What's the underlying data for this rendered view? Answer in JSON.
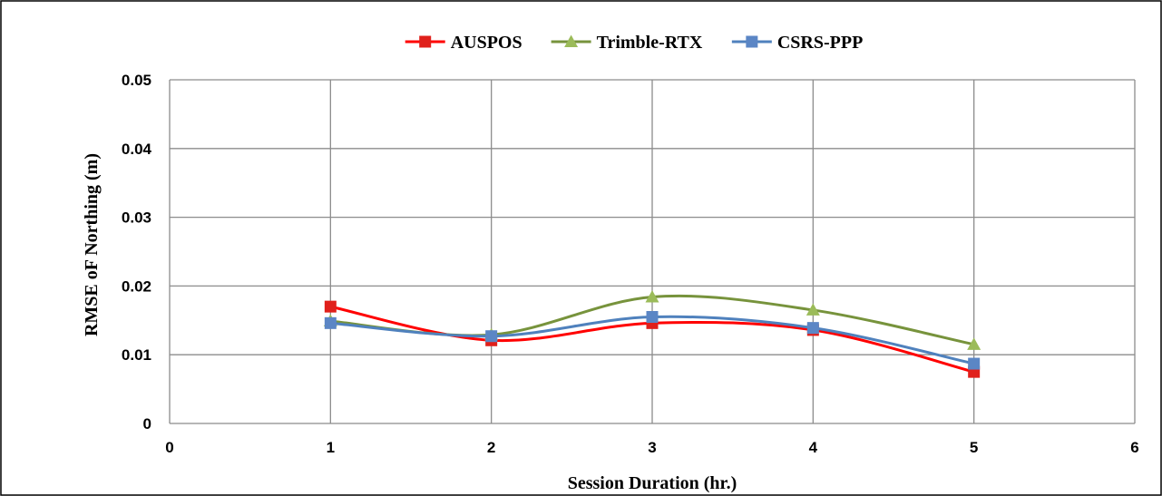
{
  "chart_data": {
    "type": "line",
    "xlabel": "Session Duration (hr.)",
    "ylabel": "RMSE oF  Northing (m)",
    "xlim": [
      0,
      6
    ],
    "ylim": [
      0,
      0.05
    ],
    "x_ticks": [
      "0",
      "1",
      "2",
      "3",
      "4",
      "5",
      "6"
    ],
    "y_ticks": [
      "0",
      "0.01",
      "0.02",
      "0.03",
      "0.04",
      "0.05"
    ],
    "grid": true,
    "legend_position": "top",
    "x": [
      1,
      2,
      3,
      4,
      5
    ],
    "series": [
      {
        "name": "AUSPOS",
        "color": "#ff0000",
        "marker": "square",
        "marker_color": "#e0201b",
        "values": [
          0.017,
          0.0121,
          0.0146,
          0.0136,
          0.0075
        ]
      },
      {
        "name": "Trimble-RTX",
        "color": "#77933c",
        "marker": "triangle",
        "marker_color": "#9bbb59",
        "values": [
          0.0149,
          0.0129,
          0.0184,
          0.0165,
          0.0115
        ]
      },
      {
        "name": "CSRS-PPP",
        "color": "#4f81bd",
        "marker": "square",
        "marker_color": "#5b86c5",
        "values": [
          0.0146,
          0.0127,
          0.0155,
          0.0139,
          0.0087
        ]
      }
    ]
  }
}
